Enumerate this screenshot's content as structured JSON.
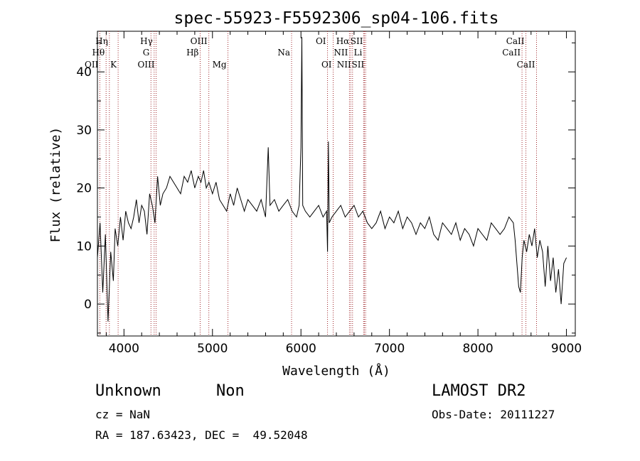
{
  "chart_data": {
    "type": "line",
    "title": "spec-55923-F5592306_sp04-106.fits",
    "xlabel": "Wavelength (Å)",
    "ylabel": "Flux (relative)",
    "xlim": [
      3700,
      9100
    ],
    "ylim": [
      -5.5,
      47
    ],
    "xticks": [
      4000,
      5000,
      6000,
      7000,
      8000,
      9000
    ],
    "yticks": [
      0,
      10,
      20,
      30,
      40
    ],
    "grid": false,
    "series": [
      {
        "x": [
          3700,
          3730,
          3760,
          3790,
          3820,
          3850,
          3880,
          3900,
          3930,
          3960,
          3990,
          4020,
          4050,
          4080,
          4110,
          4140,
          4170,
          4200,
          4230,
          4260,
          4290,
          4320,
          4350,
          4380,
          4410,
          4440,
          4480,
          4520,
          4560,
          4600,
          4640,
          4680,
          4720,
          4760,
          4800,
          4840,
          4870,
          4900,
          4930,
          4960,
          5000,
          5040,
          5080,
          5120,
          5160,
          5200,
          5240,
          5280,
          5320,
          5360,
          5400,
          5450,
          5500,
          5550,
          5600,
          5630,
          5650,
          5700,
          5750,
          5800,
          5850,
          5900,
          5950,
          5980,
          6000,
          6010,
          6020,
          6050,
          6100,
          6150,
          6200,
          6250,
          6290,
          6300,
          6310,
          6320,
          6350,
          6400,
          6450,
          6500,
          6550,
          6600,
          6650,
          6700,
          6750,
          6800,
          6850,
          6900,
          6950,
          7000,
          7050,
          7100,
          7150,
          7200,
          7250,
          7300,
          7350,
          7400,
          7450,
          7500,
          7550,
          7600,
          7650,
          7700,
          7750,
          7800,
          7850,
          7900,
          7950,
          8000,
          8050,
          8100,
          8150,
          8200,
          8250,
          8300,
          8350,
          8400,
          8420,
          8440,
          8460,
          8480,
          8500,
          8520,
          8550,
          8580,
          8610,
          8640,
          8670,
          8700,
          8730,
          8760,
          8790,
          8820,
          8850,
          8880,
          8910,
          8940,
          8970,
          9000
        ],
        "values": [
          8,
          14,
          2,
          12,
          -3,
          9,
          4,
          13,
          10,
          15,
          11,
          16,
          14,
          13,
          15,
          18,
          14,
          17,
          16,
          12,
          19,
          17,
          14,
          22,
          17,
          19,
          20,
          22,
          21,
          20,
          19,
          22,
          21,
          23,
          20,
          22,
          21,
          23,
          20,
          21,
          19,
          21,
          18,
          17,
          16,
          19,
          17,
          20,
          18,
          16,
          18,
          17,
          16,
          18,
          15,
          27,
          17,
          18,
          16,
          17,
          18,
          16,
          15,
          17,
          27,
          46,
          17,
          16,
          15,
          16,
          17,
          15,
          16,
          9,
          28,
          14,
          15,
          16,
          17,
          15,
          16,
          17,
          15,
          16,
          14,
          13,
          14,
          16,
          13,
          15,
          14,
          16,
          13,
          15,
          14,
          12,
          14,
          13,
          15,
          12,
          11,
          14,
          13,
          12,
          14,
          11,
          13,
          12,
          10,
          13,
          12,
          11,
          14,
          13,
          12,
          13,
          15,
          14,
          11,
          7,
          3,
          2,
          8,
          11,
          9,
          12,
          10,
          13,
          8,
          11,
          9,
          3,
          10,
          4,
          8,
          2,
          6,
          0,
          7,
          8
        ]
      }
    ],
    "annotations": [
      {
        "label": "Hη",
        "x": 3835,
        "row": 0
      },
      {
        "label": "Hθ",
        "x": 3798,
        "row": 1
      },
      {
        "label": "OII",
        "x": 3727,
        "row": 2
      },
      {
        "label": "K",
        "x": 3934,
        "row": 2
      },
      {
        "label": "Hγ",
        "x": 4341,
        "row": 0
      },
      {
        "label": "G",
        "x": 4305,
        "row": 1
      },
      {
        "label": "OIII",
        "x": 4363,
        "row": 2
      },
      {
        "label": "OIII",
        "x": 4959,
        "row": 0
      },
      {
        "label": "Hβ",
        "x": 4861,
        "row": 1
      },
      {
        "label": "Mg",
        "x": 5175,
        "row": 2
      },
      {
        "label": "Na",
        "x": 5894,
        "row": 1
      },
      {
        "label": "OI",
        "x": 6300,
        "row": 0
      },
      {
        "label": "OI",
        "x": 6364,
        "row": 2
      },
      {
        "label": "Hα",
        "x": 6563,
        "row": 0
      },
      {
        "label": "NII",
        "x": 6548,
        "row": 1
      },
      {
        "label": "NII",
        "x": 6583,
        "row": 2
      },
      {
        "label": "SII",
        "x": 6717,
        "row": 0
      },
      {
        "label": "Li",
        "x": 6708,
        "row": 1
      },
      {
        "label": "SII",
        "x": 6731,
        "row": 2
      },
      {
        "label": "CaII",
        "x": 8542,
        "row": 0
      },
      {
        "label": "CaII",
        "x": 8498,
        "row": 1
      },
      {
        "label": "CaII",
        "x": 8662,
        "row": 2
      }
    ]
  },
  "footer": {
    "object_class": "Unknown",
    "object_subclass": "Non",
    "cz": "cz = NaN",
    "coords": "RA = 187.63423, DEC =  49.52048",
    "survey": "LAMOST DR2",
    "obs_date": "Obs-Date: 20111227"
  },
  "colors": {
    "spectrum": "#000000",
    "line_markers": "#a0282d",
    "background": "#ffffff"
  }
}
